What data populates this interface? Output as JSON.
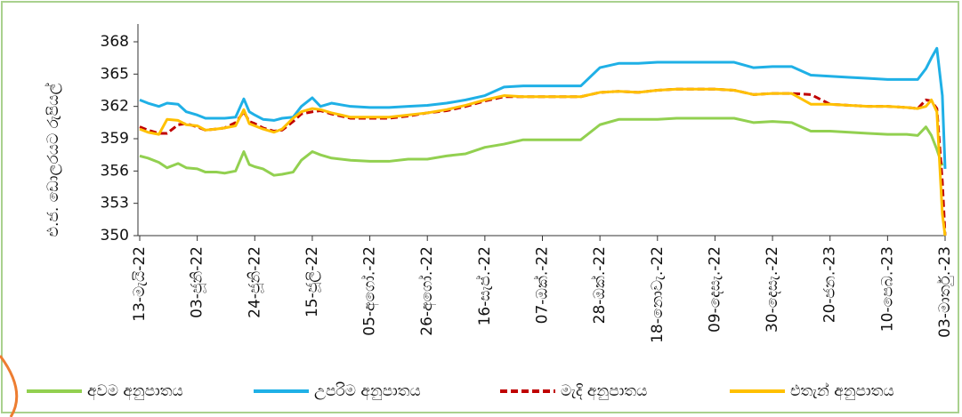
{
  "chart_data": {
    "type": "line",
    "y_label": "එ.ජ. ඩොලරයට රුපියල්",
    "x": [
      0,
      3,
      7,
      10,
      14,
      17,
      21,
      24,
      28,
      31,
      35,
      38,
      40,
      42,
      45,
      49,
      52,
      56,
      59,
      63,
      66,
      70,
      77,
      84,
      91,
      98,
      105,
      112,
      119,
      126,
      133,
      140,
      147,
      154,
      161,
      168,
      175,
      182,
      189,
      196,
      203,
      210,
      217,
      224,
      231,
      238,
      245,
      252,
      259,
      266,
      273,
      280,
      284,
      287,
      289,
      291,
      293,
      294
    ],
    "xlim": [
      0,
      294
    ],
    "xticks": [
      {
        "value": 0,
        "label": "13-මැයි-22"
      },
      {
        "value": 21,
        "label": "03-ජූනි-22"
      },
      {
        "value": 42,
        "label": "24-ජූනි-22"
      },
      {
        "value": 63,
        "label": "15-ජූලි-22"
      },
      {
        "value": 84,
        "label": "05-අගෝ.-22"
      },
      {
        "value": 105,
        "label": "26-අගෝ.-22"
      },
      {
        "value": 126,
        "label": "16-සැප්.-22"
      },
      {
        "value": 147,
        "label": "07-ඔක්.-22"
      },
      {
        "value": 168,
        "label": "28-ඔක්.-22"
      },
      {
        "value": 189,
        "label": "18-නොවැ.-22"
      },
      {
        "value": 210,
        "label": "09-දෙසැ.-22"
      },
      {
        "value": 231,
        "label": "30-දෙසැ.-22"
      },
      {
        "value": 252,
        "label": "20-ජන.-23"
      },
      {
        "value": 273,
        "label": "10-පෙබ.-23"
      },
      {
        "value": 294,
        "label": "03-මාර්තු.-23"
      }
    ],
    "ylim": [
      350,
      368
    ],
    "yticks": [
      350,
      353,
      356,
      359,
      362,
      365,
      368
    ],
    "series": [
      {
        "name": "අවම අනුපාතය",
        "color": "#92d050",
        "dash": false,
        "values": [
          357.4,
          357.2,
          356.8,
          356.3,
          356.7,
          356.3,
          356.2,
          355.9,
          355.9,
          355.8,
          356.0,
          357.8,
          356.6,
          356.4,
          356.2,
          355.6,
          355.7,
          355.9,
          357.0,
          357.8,
          357.5,
          357.2,
          357.0,
          356.9,
          356.9,
          357.1,
          357.1,
          357.4,
          357.6,
          358.2,
          358.5,
          358.9,
          358.9,
          358.9,
          358.9,
          360.3,
          360.8,
          360.8,
          360.8,
          360.9,
          360.9,
          360.9,
          360.9,
          360.5,
          360.6,
          360.5,
          359.7,
          359.7,
          359.6,
          359.5,
          359.4,
          359.4,
          359.3,
          360.1,
          359.3,
          358.0,
          356.5,
          null
        ]
      },
      {
        "name": "උපරිම අනුපාතය",
        "color": "#1fb0e6",
        "dash": false,
        "values": [
          362.6,
          362.3,
          362.0,
          362.3,
          362.2,
          361.5,
          361.2,
          360.9,
          360.9,
          360.9,
          361.0,
          362.7,
          361.5,
          361.2,
          360.8,
          360.7,
          360.9,
          361.0,
          362.0,
          362.8,
          362.0,
          362.3,
          362.0,
          361.9,
          361.9,
          362.0,
          362.1,
          362.3,
          362.6,
          363.0,
          363.8,
          363.9,
          363.9,
          363.9,
          363.9,
          365.6,
          366.0,
          366.0,
          366.1,
          366.1,
          366.1,
          366.1,
          366.1,
          365.6,
          365.7,
          365.7,
          364.9,
          364.8,
          364.7,
          364.6,
          364.5,
          364.5,
          364.5,
          365.5,
          366.5,
          367.4,
          363.0,
          356.2
        ]
      },
      {
        "name": "මැදි අනුපාතය",
        "color": "#c00000",
        "dash": true,
        "values": [
          360.1,
          359.8,
          359.5,
          359.5,
          360.3,
          360.4,
          360.1,
          359.8,
          359.9,
          360.0,
          360.5,
          361.5,
          360.6,
          360.4,
          360.0,
          359.7,
          359.8,
          360.6,
          361.3,
          361.5,
          361.6,
          361.3,
          360.9,
          360.9,
          360.9,
          361.1,
          361.4,
          361.6,
          362.0,
          362.5,
          362.9,
          362.9,
          362.9,
          362.9,
          362.9,
          363.3,
          363.4,
          363.3,
          363.5,
          363.6,
          363.6,
          363.6,
          363.5,
          363.1,
          363.2,
          363.2,
          363.1,
          362.2,
          362.1,
          362.0,
          362.0,
          361.9,
          361.8,
          362.6,
          362.5,
          361.8,
          355.0,
          350.0
        ]
      },
      {
        "name": "එතැන් අනුපාතය",
        "color": "#ffc000",
        "dash": false,
        "values": [
          359.9,
          359.6,
          359.4,
          360.8,
          360.7,
          360.3,
          360.2,
          359.8,
          359.9,
          360.0,
          360.2,
          361.7,
          360.4,
          360.2,
          359.9,
          359.6,
          359.9,
          360.9,
          361.5,
          361.8,
          361.7,
          361.4,
          361.0,
          361.0,
          361.0,
          361.2,
          361.4,
          361.7,
          362.1,
          362.6,
          363.0,
          362.9,
          362.9,
          362.9,
          362.9,
          363.3,
          363.4,
          363.3,
          363.5,
          363.6,
          363.6,
          363.6,
          363.5,
          363.1,
          363.2,
          363.2,
          362.2,
          362.2,
          362.1,
          362.0,
          362.0,
          361.9,
          361.8,
          362.0,
          362.6,
          361.5,
          352.0,
          350.0
        ]
      }
    ]
  }
}
